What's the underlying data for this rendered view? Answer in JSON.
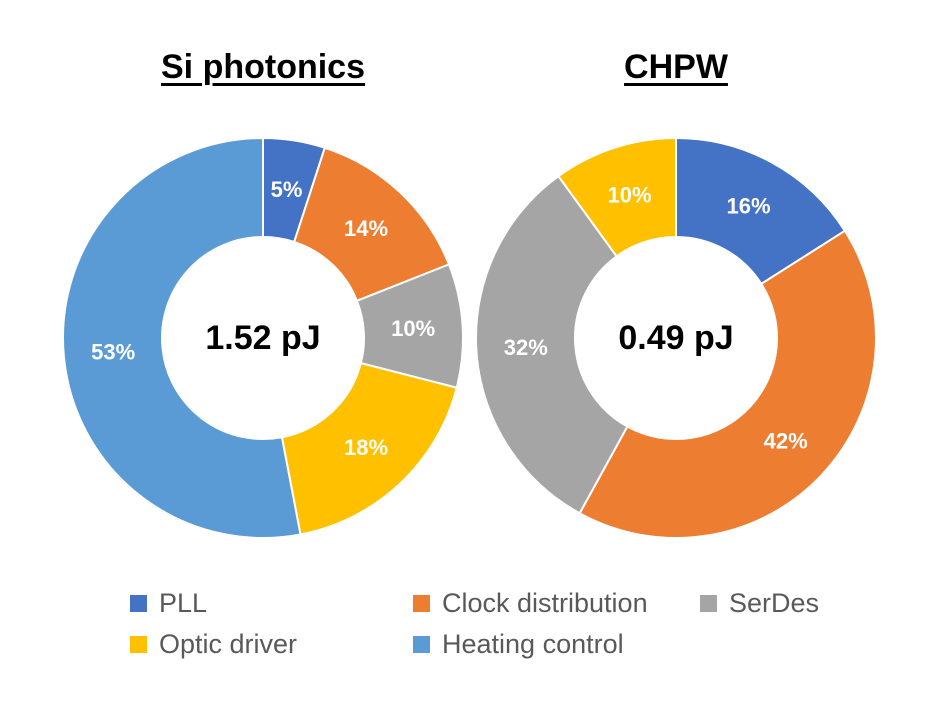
{
  "chart_data": [
    {
      "type": "pie",
      "title": "Si photonics",
      "center_label": "1.52 pJ",
      "slices": [
        {
          "category": "PLL",
          "value": 5,
          "label": "5%",
          "color": "#4472C4"
        },
        {
          "category": "Clock distribution",
          "value": 14,
          "label": "14%",
          "color": "#ED7D31"
        },
        {
          "category": "SerDes",
          "value": 10,
          "label": "10%",
          "color": "#A5A5A5"
        },
        {
          "category": "Optic driver",
          "value": 18,
          "label": "18%",
          "color": "#FFC000"
        },
        {
          "category": "Heating control",
          "value": 53,
          "label": "53%",
          "color": "#5B9BD5"
        }
      ]
    },
    {
      "type": "pie",
      "title": "CHPW",
      "center_label": "0.49 pJ",
      "slices": [
        {
          "category": "PLL",
          "value": 16,
          "label": "16%",
          "color": "#4472C4"
        },
        {
          "category": "Clock distribution",
          "value": 42,
          "label": "42%",
          "color": "#ED7D31"
        },
        {
          "category": "SerDes",
          "value": 32,
          "label": "32%",
          "color": "#A5A5A5"
        },
        {
          "category": "Optic driver",
          "value": 10,
          "label": "10%",
          "color": "#FFC000"
        }
      ]
    }
  ],
  "legend": [
    {
      "label": "PLL",
      "color": "#4472C4"
    },
    {
      "label": "Clock distribution",
      "color": "#ED7D31"
    },
    {
      "label": "SerDes",
      "color": "#A5A5A5"
    },
    {
      "label": "Optic driver",
      "color": "#FFC000"
    },
    {
      "label": "Heating control",
      "color": "#5B9BD5"
    }
  ]
}
